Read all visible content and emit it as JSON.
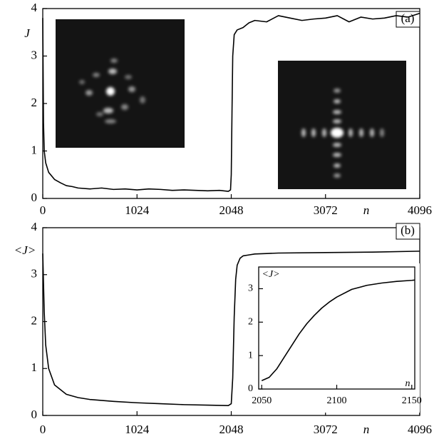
{
  "chart_data": [
    {
      "type": "line",
      "panel_label": "(a)",
      "y_label": "J",
      "x_label": "n",
      "x": [
        0,
        8,
        16,
        32,
        64,
        128,
        192,
        256,
        320,
        384,
        512,
        640,
        768,
        896,
        1024,
        1152,
        1280,
        1408,
        1536,
        1664,
        1792,
        1920,
        2016,
        2040,
        2048,
        2056,
        2064,
        2080,
        2112,
        2176,
        2240,
        2304,
        2432,
        2560,
        2688,
        2816,
        2944,
        3072,
        3200,
        3328,
        3456,
        3584,
        3712,
        3840,
        3968,
        4096
      ],
      "values": [
        3.8,
        1.6,
        1.0,
        0.75,
        0.55,
        0.4,
        0.33,
        0.27,
        0.25,
        0.22,
        0.2,
        0.22,
        0.19,
        0.2,
        0.18,
        0.2,
        0.19,
        0.17,
        0.18,
        0.17,
        0.16,
        0.17,
        0.15,
        0.18,
        0.5,
        1.8,
        3.0,
        3.45,
        3.55,
        3.6,
        3.7,
        3.75,
        3.72,
        3.85,
        3.8,
        3.75,
        3.78,
        3.8,
        3.85,
        3.72,
        3.82,
        3.78,
        3.8,
        3.85,
        3.82,
        3.9
      ],
      "color": "#000000",
      "xlim": [
        0,
        4096
      ],
      "xticks": [
        0,
        1024,
        2048,
        3072,
        4096
      ],
      "ylim": [
        0,
        4
      ],
      "yticks": [
        0,
        1,
        2,
        3,
        4
      ]
    },
    {
      "type": "line",
      "panel_label": "(b)",
      "y_label": "<J>",
      "x_label": "n",
      "x": [
        0,
        16,
        32,
        64,
        128,
        256,
        384,
        512,
        768,
        1024,
        1280,
        1536,
        1792,
        2016,
        2048,
        2064,
        2080,
        2096,
        2112,
        2144,
        2176,
        2240,
        2304,
        2432,
        2560,
        3072,
        3584,
        4096
      ],
      "values": [
        3.45,
        2.2,
        1.5,
        1.0,
        0.65,
        0.45,
        0.38,
        0.34,
        0.3,
        0.27,
        0.25,
        0.23,
        0.22,
        0.21,
        0.25,
        0.8,
        2.1,
        2.9,
        3.2,
        3.35,
        3.4,
        3.42,
        3.44,
        3.45,
        3.46,
        3.47,
        3.48,
        3.5
      ],
      "color": "#000000",
      "xlim": [
        0,
        4096
      ],
      "xticks": [
        0,
        1024,
        2048,
        3072,
        4096
      ],
      "ylim": [
        0,
        4
      ],
      "yticks": [
        0,
        1,
        2,
        3,
        4
      ]
    },
    {
      "type": "line",
      "y_label": "<J>",
      "x_label": "n",
      "x": [
        2050,
        2055,
        2060,
        2065,
        2070,
        2075,
        2080,
        2085,
        2090,
        2095,
        2100,
        2110,
        2120,
        2130,
        2140,
        2150,
        2152
      ],
      "values": [
        0.25,
        0.35,
        0.6,
        0.95,
        1.3,
        1.65,
        1.95,
        2.2,
        2.42,
        2.6,
        2.75,
        2.98,
        3.1,
        3.17,
        3.22,
        3.25,
        3.26
      ],
      "color": "#000000",
      "xlim": [
        2048,
        2152
      ],
      "xticks": [
        2050,
        2100,
        2150
      ],
      "ylim": [
        0,
        3.65
      ],
      "yticks": [
        0,
        1,
        2,
        3
      ]
    }
  ]
}
